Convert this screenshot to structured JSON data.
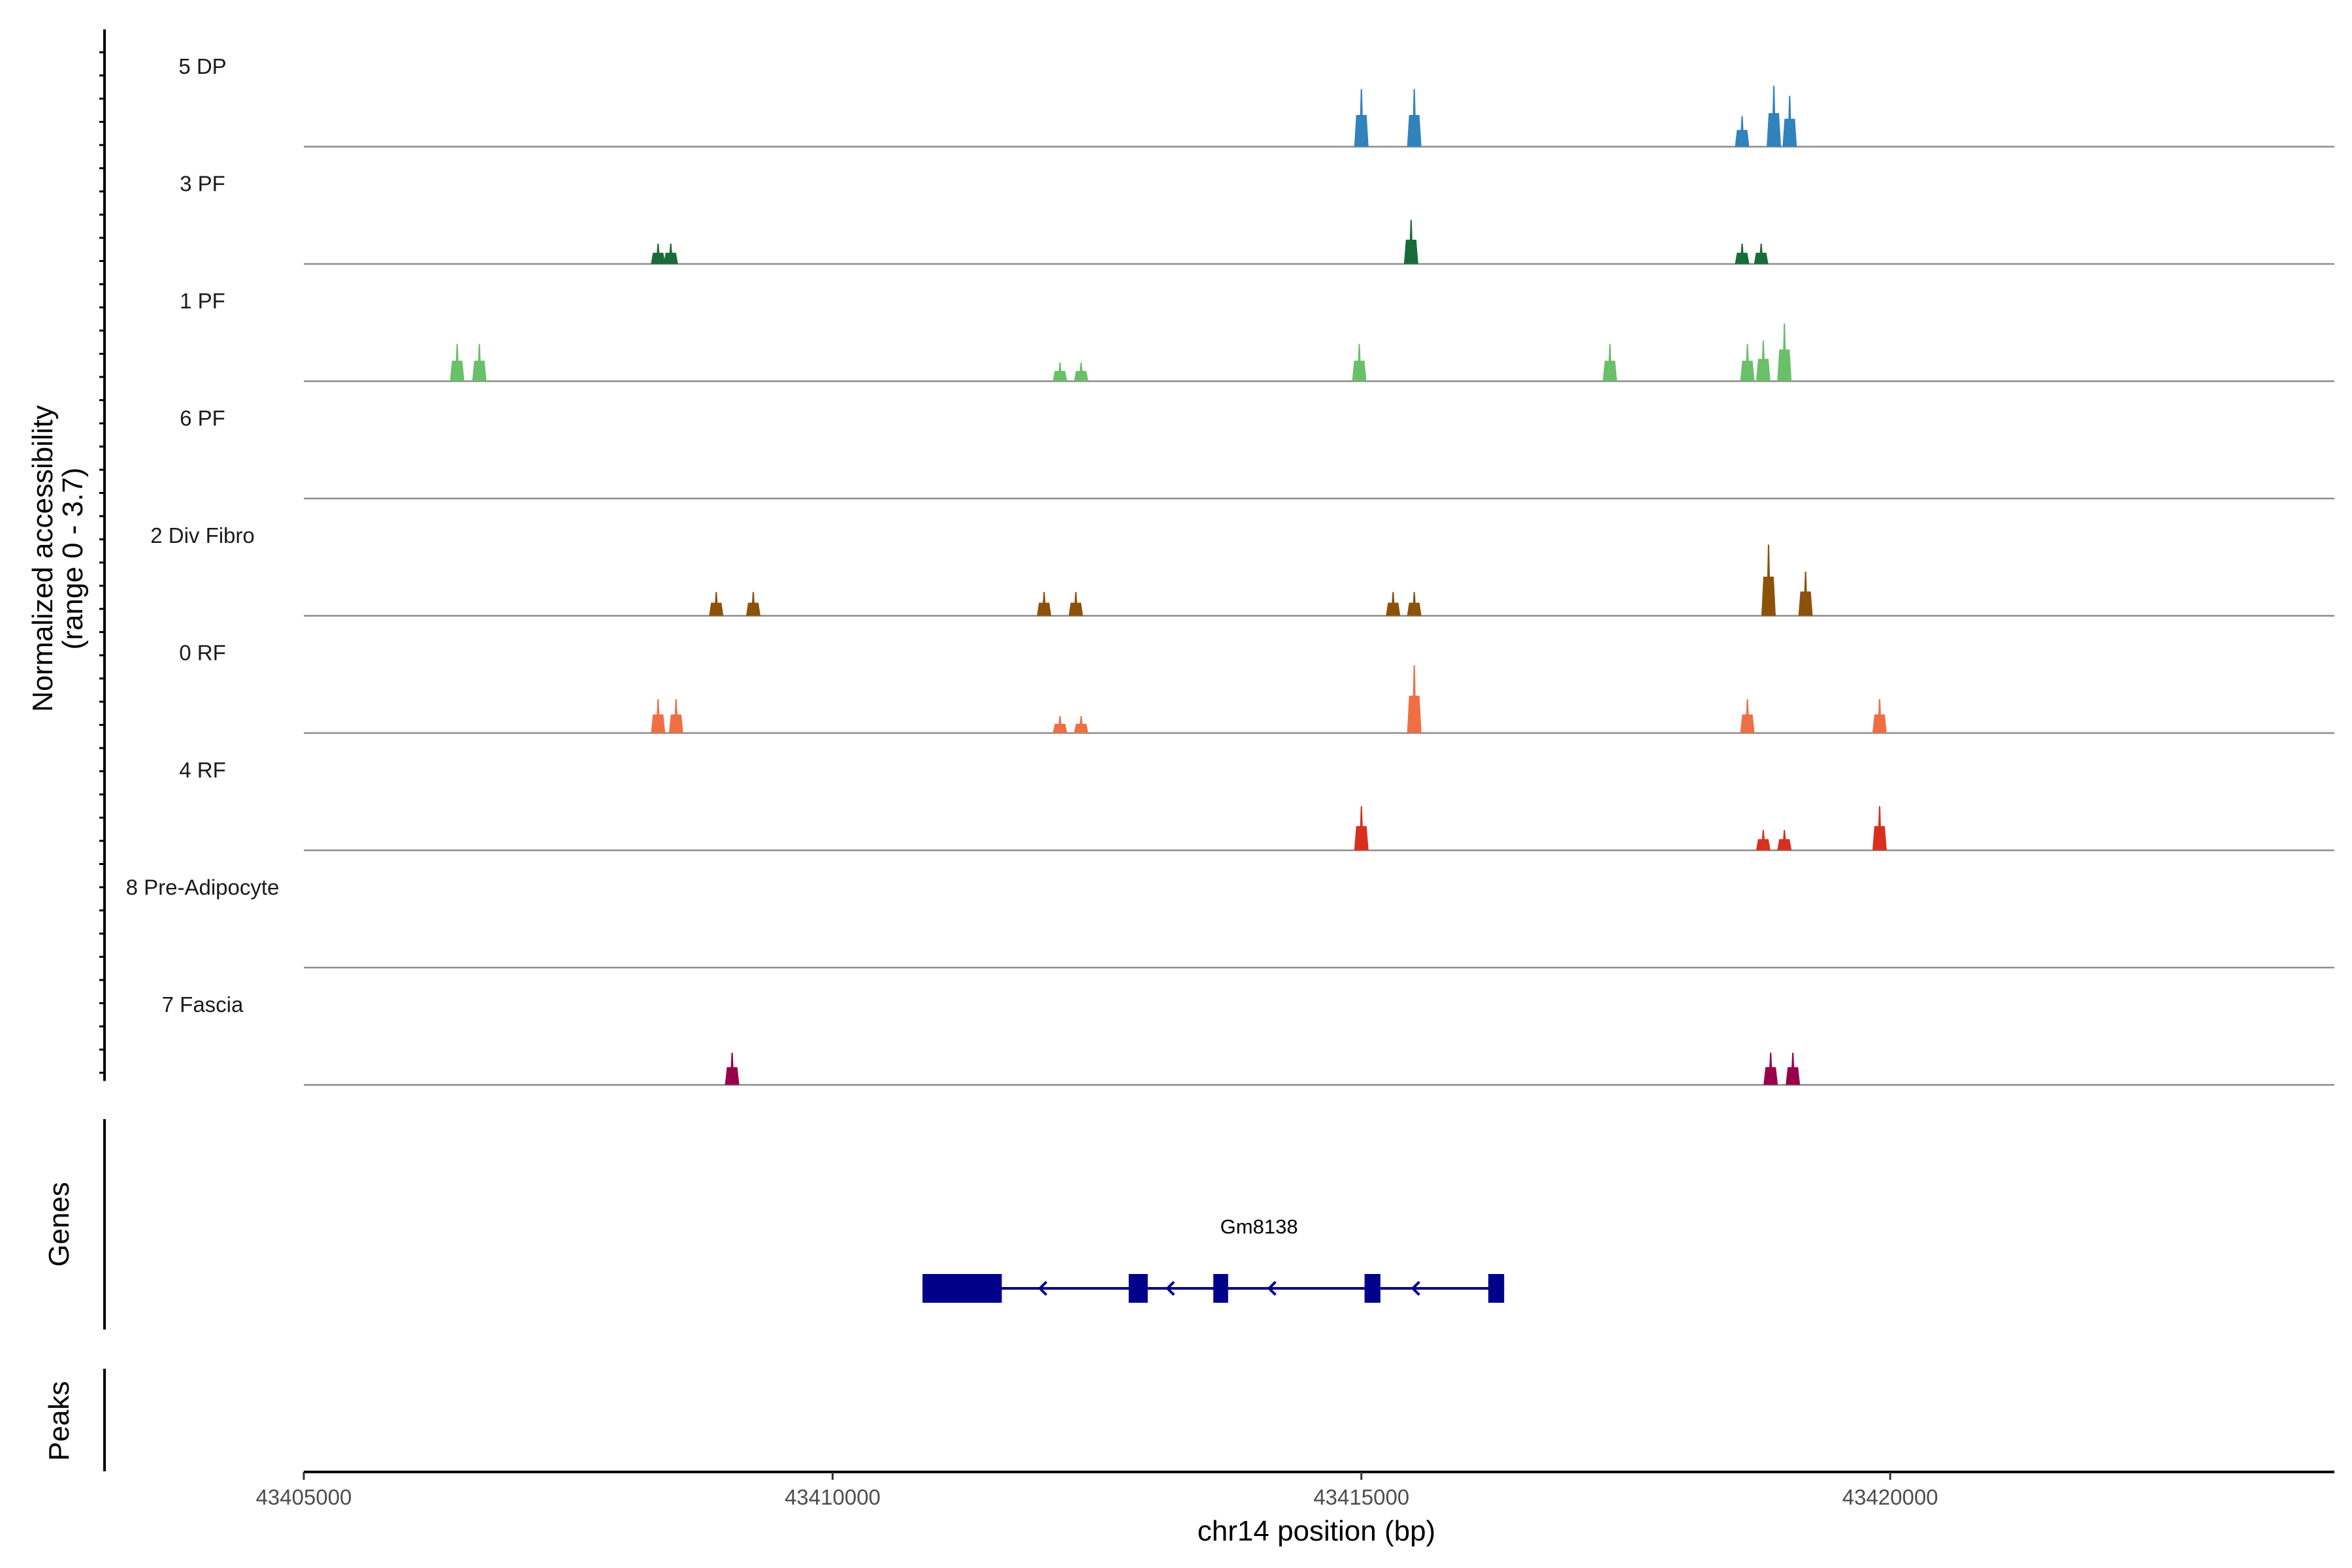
{
  "chart_data": {
    "type": "coverage",
    "xlabel": "chr14 position (bp)",
    "ylabel": "Normalized accessibility\n(range 0 - 3.7)",
    "ylim": [
      0,
      3.7
    ],
    "xlim": [
      43405000,
      43424200
    ],
    "xticks": [
      43405000,
      43410000,
      43415000,
      43420000
    ],
    "tracks": [
      {
        "name": "5 DP",
        "color": "#3182bd",
        "peaks": [
          [
            43415000,
            1.7
          ],
          [
            43415500,
            1.7
          ],
          [
            43418600,
            0.9
          ],
          [
            43418900,
            1.8
          ],
          [
            43419050,
            1.5
          ]
        ]
      },
      {
        "name": "3 PF",
        "color": "#1a6b3a",
        "peaks": [
          [
            43408350,
            0.6
          ],
          [
            43408470,
            0.6
          ],
          [
            43415470,
            1.3
          ],
          [
            43418600,
            0.6
          ],
          [
            43418780,
            0.6
          ]
        ]
      },
      {
        "name": "1 PF",
        "color": "#6abf69",
        "peaks": [
          [
            43406450,
            1.1
          ],
          [
            43406660,
            1.1
          ],
          [
            43412150,
            0.55
          ],
          [
            43412350,
            0.55
          ],
          [
            43414980,
            1.1
          ],
          [
            43417350,
            1.1
          ],
          [
            43418650,
            1.1
          ],
          [
            43418800,
            1.2
          ],
          [
            43419000,
            1.7
          ]
        ]
      },
      {
        "name": "6 PF",
        "color": "#6abf69",
        "peaks": []
      },
      {
        "name": "2 Div Fibro",
        "color": "#8c510a",
        "peaks": [
          [
            43408900,
            0.7
          ],
          [
            43409250,
            0.7
          ],
          [
            43412000,
            0.7
          ],
          [
            43412300,
            0.7
          ],
          [
            43415300,
            0.7
          ],
          [
            43415500,
            0.7
          ],
          [
            43418850,
            2.1
          ],
          [
            43419200,
            1.3
          ]
        ]
      },
      {
        "name": "0 RF",
        "color": "#ef6f45",
        "peaks": [
          [
            43408350,
            1.0
          ],
          [
            43408520,
            1.0
          ],
          [
            43412150,
            0.5
          ],
          [
            43412350,
            0.5
          ],
          [
            43415500,
            2.0
          ],
          [
            43418650,
            1.0
          ],
          [
            43419900,
            1.0
          ]
        ]
      },
      {
        "name": "4 RF",
        "color": "#d7301f",
        "peaks": [
          [
            43415000,
            1.3
          ],
          [
            43418800,
            0.6
          ],
          [
            43419000,
            0.6
          ],
          [
            43419900,
            1.3
          ]
        ]
      },
      {
        "name": "8 Pre-Adipocyte",
        "color": "#999999",
        "peaks": []
      },
      {
        "name": "7 Fascia",
        "color": "#99004c",
        "peaks": [
          [
            43409050,
            0.95
          ],
          [
            43418870,
            0.95
          ],
          [
            43419080,
            0.95
          ]
        ]
      }
    ],
    "genes": [
      {
        "name": "Gm8138",
        "strand": "-",
        "color": "#00008b",
        "start": 43410850,
        "end": 43416350,
        "exons": [
          [
            43410850,
            43411600
          ],
          [
            43412800,
            43412980
          ],
          [
            43413600,
            43413740
          ],
          [
            43415030,
            43415180
          ],
          [
            43416200,
            43416350
          ]
        ]
      }
    ],
    "panels": {
      "genes_title": "Genes",
      "peaks_title": "Peaks"
    }
  }
}
